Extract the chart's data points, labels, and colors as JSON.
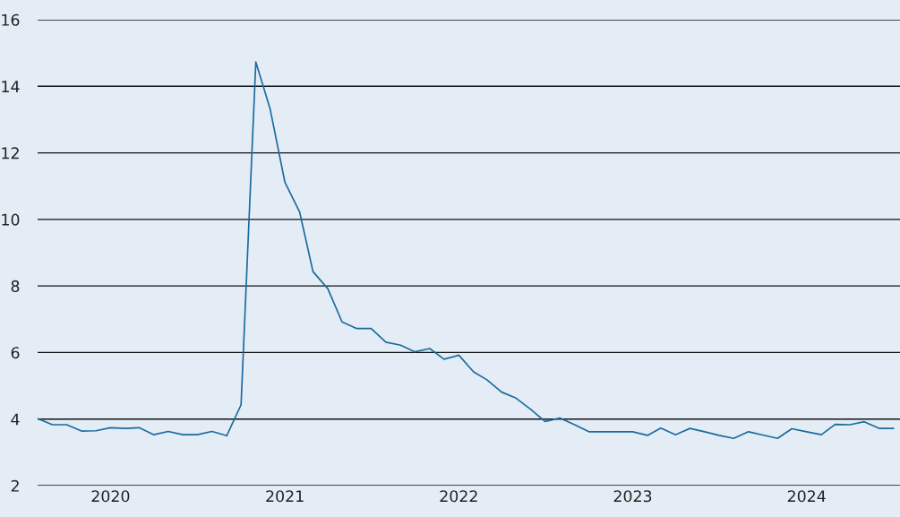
{
  "chart_data": {
    "type": "line",
    "x": [
      "2019-08",
      "2019-09",
      "2019-10",
      "2019-11",
      "2019-12",
      "2020-01",
      "2020-02",
      "2020-03",
      "2020-04",
      "2020-05",
      "2020-06",
      "2020-07",
      "2020-08",
      "2020-09",
      "2020-10",
      "2020-11",
      "2020-12",
      "2021-01",
      "2021-02",
      "2021-03",
      "2021-04",
      "2021-05",
      "2021-06",
      "2021-07",
      "2021-08",
      "2021-09",
      "2021-10",
      "2021-11",
      "2021-12",
      "2022-01",
      "2022-02",
      "2022-03",
      "2022-04",
      "2022-05",
      "2022-06",
      "2022-07",
      "2022-08",
      "2022-09",
      "2022-10",
      "2022-11",
      "2022-12",
      "2023-01",
      "2023-02",
      "2023-03",
      "2023-04",
      "2023-05",
      "2023-06",
      "2023-07",
      "2023-08",
      "2023-09",
      "2023-10",
      "2023-11",
      "2023-12",
      "2024-01",
      "2024-02",
      "2024-03",
      "2024-04",
      "2024-05",
      "2024-06",
      "2024-07"
    ],
    "series": [
      {
        "color": "#1a6b9e",
        "values": [
          4.02,
          3.83,
          3.83,
          3.64,
          3.65,
          3.74,
          3.72,
          3.74,
          3.53,
          3.63,
          3.53,
          3.53,
          3.63,
          3.5,
          4.43,
          14.73,
          13.32,
          11.12,
          10.22,
          8.43,
          7.92,
          6.92,
          6.72,
          6.72,
          6.31,
          6.22,
          6.02,
          6.12,
          5.8,
          5.92,
          5.42,
          5.18,
          4.81,
          4.63,
          4.29,
          3.93,
          4.03,
          3.83,
          3.62,
          3.62,
          3.62,
          3.62,
          3.51,
          3.73,
          3.53,
          3.72,
          3.62,
          3.51,
          3.42,
          3.62,
          3.52,
          3.42,
          3.71,
          3.62,
          3.53,
          3.84,
          3.83,
          3.92,
          3.72,
          3.72
        ]
      }
    ],
    "xlim": [
      "2019-08-01",
      "2024-07-15"
    ],
    "xticks": [
      {
        "value": "2020-01",
        "label": "2020"
      },
      {
        "value": "2021-01",
        "label": "2021"
      },
      {
        "value": "2022-01",
        "label": "2022"
      },
      {
        "value": "2023-01",
        "label": "2023"
      },
      {
        "value": "2024-01",
        "label": "2024"
      }
    ],
    "ylim": [
      2,
      16
    ],
    "yticks": [
      2,
      4,
      6,
      8,
      10,
      12,
      14,
      16
    ],
    "grid": "y",
    "legend": false,
    "marker": "none",
    "line_style": "solid"
  }
}
